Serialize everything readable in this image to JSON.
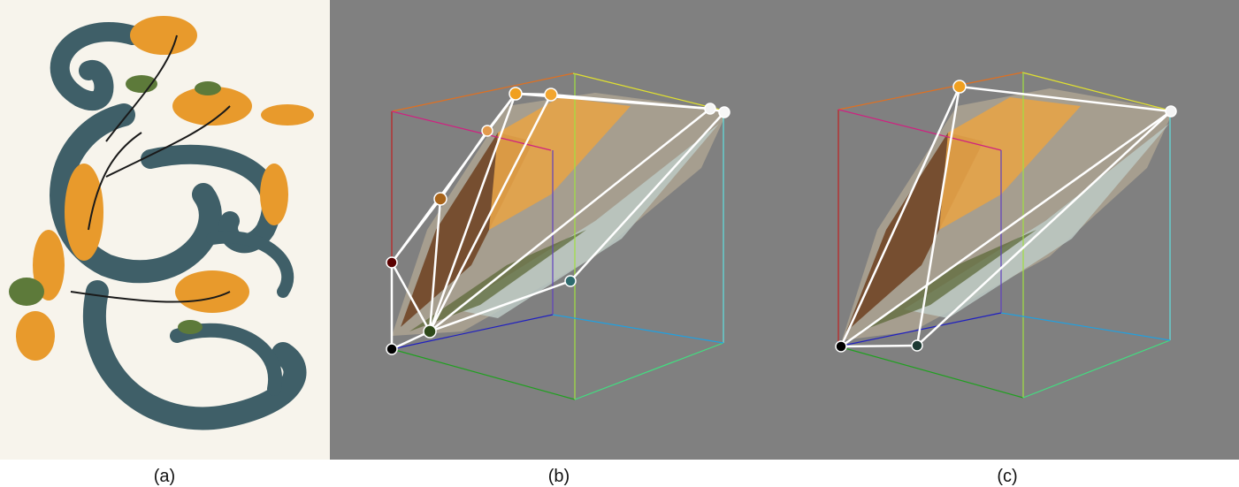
{
  "captions": {
    "a": "(a)",
    "b": "(b)",
    "c": "(c)"
  },
  "colors": {
    "background_gray": "#808080",
    "paper": "#f7f4ec",
    "teal_stroke": "#3f5f68",
    "orange": "#e89a2c",
    "green_leaf": "#5d7a3a",
    "edge_white": "#ffffff"
  },
  "panels": [
    {
      "id": "a",
      "content": "rosemaling-painting"
    },
    {
      "id": "b",
      "content": "rgb-cube-with-convex-hull"
    },
    {
      "id": "c",
      "content": "rgb-cube-with-simplified-hull"
    }
  ],
  "hull_b_vertex_colors": [
    "#000000",
    "#2f4a1a",
    "#5a0000",
    "#a8641a",
    "#e39a4c",
    "#f0a020",
    "#f2a630",
    "#f4f4f4",
    "#f7f7f7",
    "#2e6b6e"
  ],
  "hull_c_vertex_colors": [
    "#000000",
    "#1d3a33",
    "#f0a020",
    "#f4f4f4"
  ]
}
